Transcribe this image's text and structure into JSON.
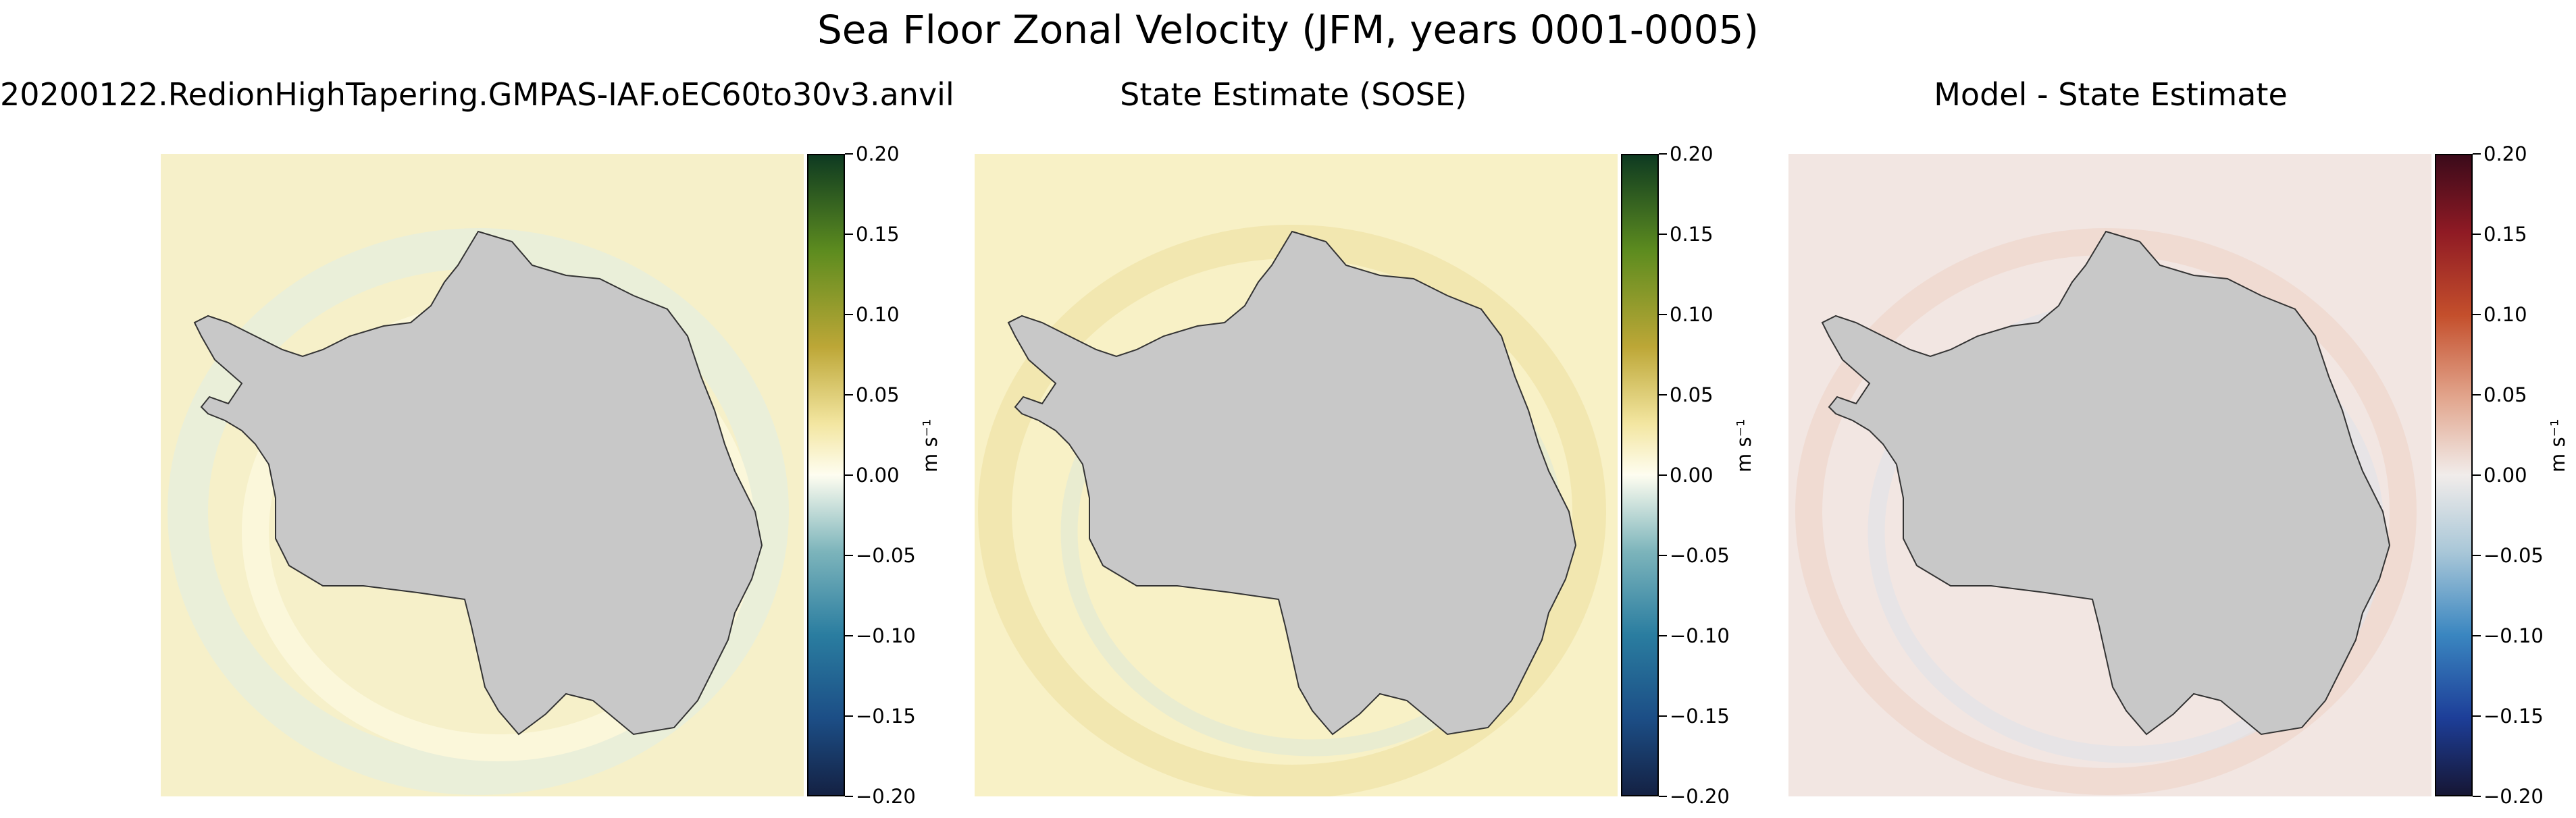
{
  "figure_title": "Sea Floor Zonal Velocity (JFM, years 0001-0005)",
  "chart_data": [
    {
      "type": "heatmap",
      "title": "20200122.RedionHighTapering.GMPAS-IAF.oEC60to30v3.anvil",
      "colormap": "gold-to-blue",
      "colorbar_label": "m s⁻¹",
      "vmin": -0.2,
      "vmax": 0.2,
      "ticks": [
        "0.20",
        "0.15",
        "0.10",
        "0.05",
        "0.00",
        "−0.05",
        "−0.10",
        "−0.15",
        "−0.20"
      ],
      "colors": [
        "#142143",
        "#1c4e86",
        "#2a7da0",
        "#7cb4bb",
        "#fefdf0",
        "#f3e6a1",
        "#bda737",
        "#5d8c1f",
        "#0e3a21"
      ]
    },
    {
      "type": "heatmap",
      "title": "State Estimate (SOSE)",
      "colormap": "gold-to-blue",
      "colorbar_label": "m s⁻¹",
      "vmin": -0.2,
      "vmax": 0.2,
      "ticks": [
        "0.20",
        "0.15",
        "0.10",
        "0.05",
        "0.00",
        "−0.05",
        "−0.10",
        "−0.15",
        "−0.20"
      ],
      "colors": [
        "#142143",
        "#1c4e86",
        "#2a7da0",
        "#7cb4bb",
        "#fefdf0",
        "#f3e6a1",
        "#bda737",
        "#5d8c1f",
        "#0e3a21"
      ]
    },
    {
      "type": "heatmap",
      "title": "Model - State Estimate",
      "colormap": "balance",
      "colorbar_label": "m s⁻¹",
      "vmin": -0.2,
      "vmax": 0.2,
      "ticks": [
        "0.20",
        "0.15",
        "0.10",
        "0.05",
        "0.00",
        "−0.05",
        "−0.10",
        "−0.15",
        "−0.20"
      ],
      "colors": [
        "#161634",
        "#1d3e98",
        "#3a86c0",
        "#a9c7d8",
        "#f1ecea",
        "#e2a68e",
        "#c44f2c",
        "#8f1a24",
        "#3b0a1a"
      ]
    }
  ],
  "land_color": "#c8c8c8"
}
